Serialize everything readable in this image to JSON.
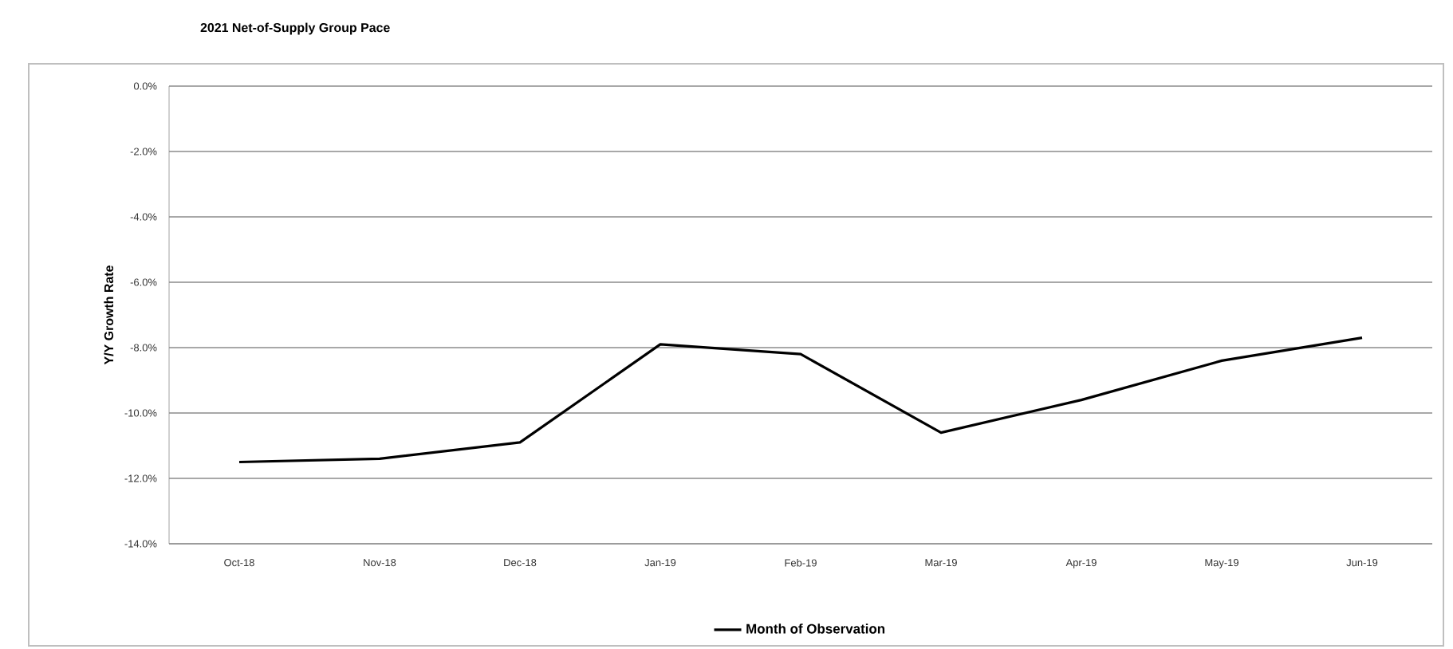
{
  "chart_data": {
    "type": "line",
    "title": "2021 Net-of-Supply Group Pace",
    "ylabel": "Y/Y Growth Rate",
    "categories": [
      "Oct-18",
      "Nov-18",
      "Dec-18",
      "Jan-19",
      "Feb-19",
      "Mar-19",
      "Apr-19",
      "May-19",
      "Jun-19"
    ],
    "series": [
      {
        "name": "Month of Observation",
        "color": "#000000",
        "values": [
          -11.5,
          -11.4,
          -10.9,
          -7.9,
          -8.2,
          -10.6,
          -9.6,
          -8.4,
          -7.7
        ]
      }
    ],
    "ylim": [
      -14,
      0
    ],
    "yticks": [
      {
        "value": -14,
        "label": "-14.0%"
      },
      {
        "value": -12,
        "label": "-12.0%"
      },
      {
        "value": -10,
        "label": "-10.0%"
      },
      {
        "value": -8,
        "label": "-8.0%"
      },
      {
        "value": -6,
        "label": "-6.0%"
      },
      {
        "value": -4,
        "label": "-4.0%"
      },
      {
        "value": -2,
        "label": "-2.0%"
      },
      {
        "value": 0,
        "label": "0.0%"
      }
    ],
    "grid": "y",
    "legend": "bottom",
    "marker": "none",
    "line_style": "solid"
  }
}
